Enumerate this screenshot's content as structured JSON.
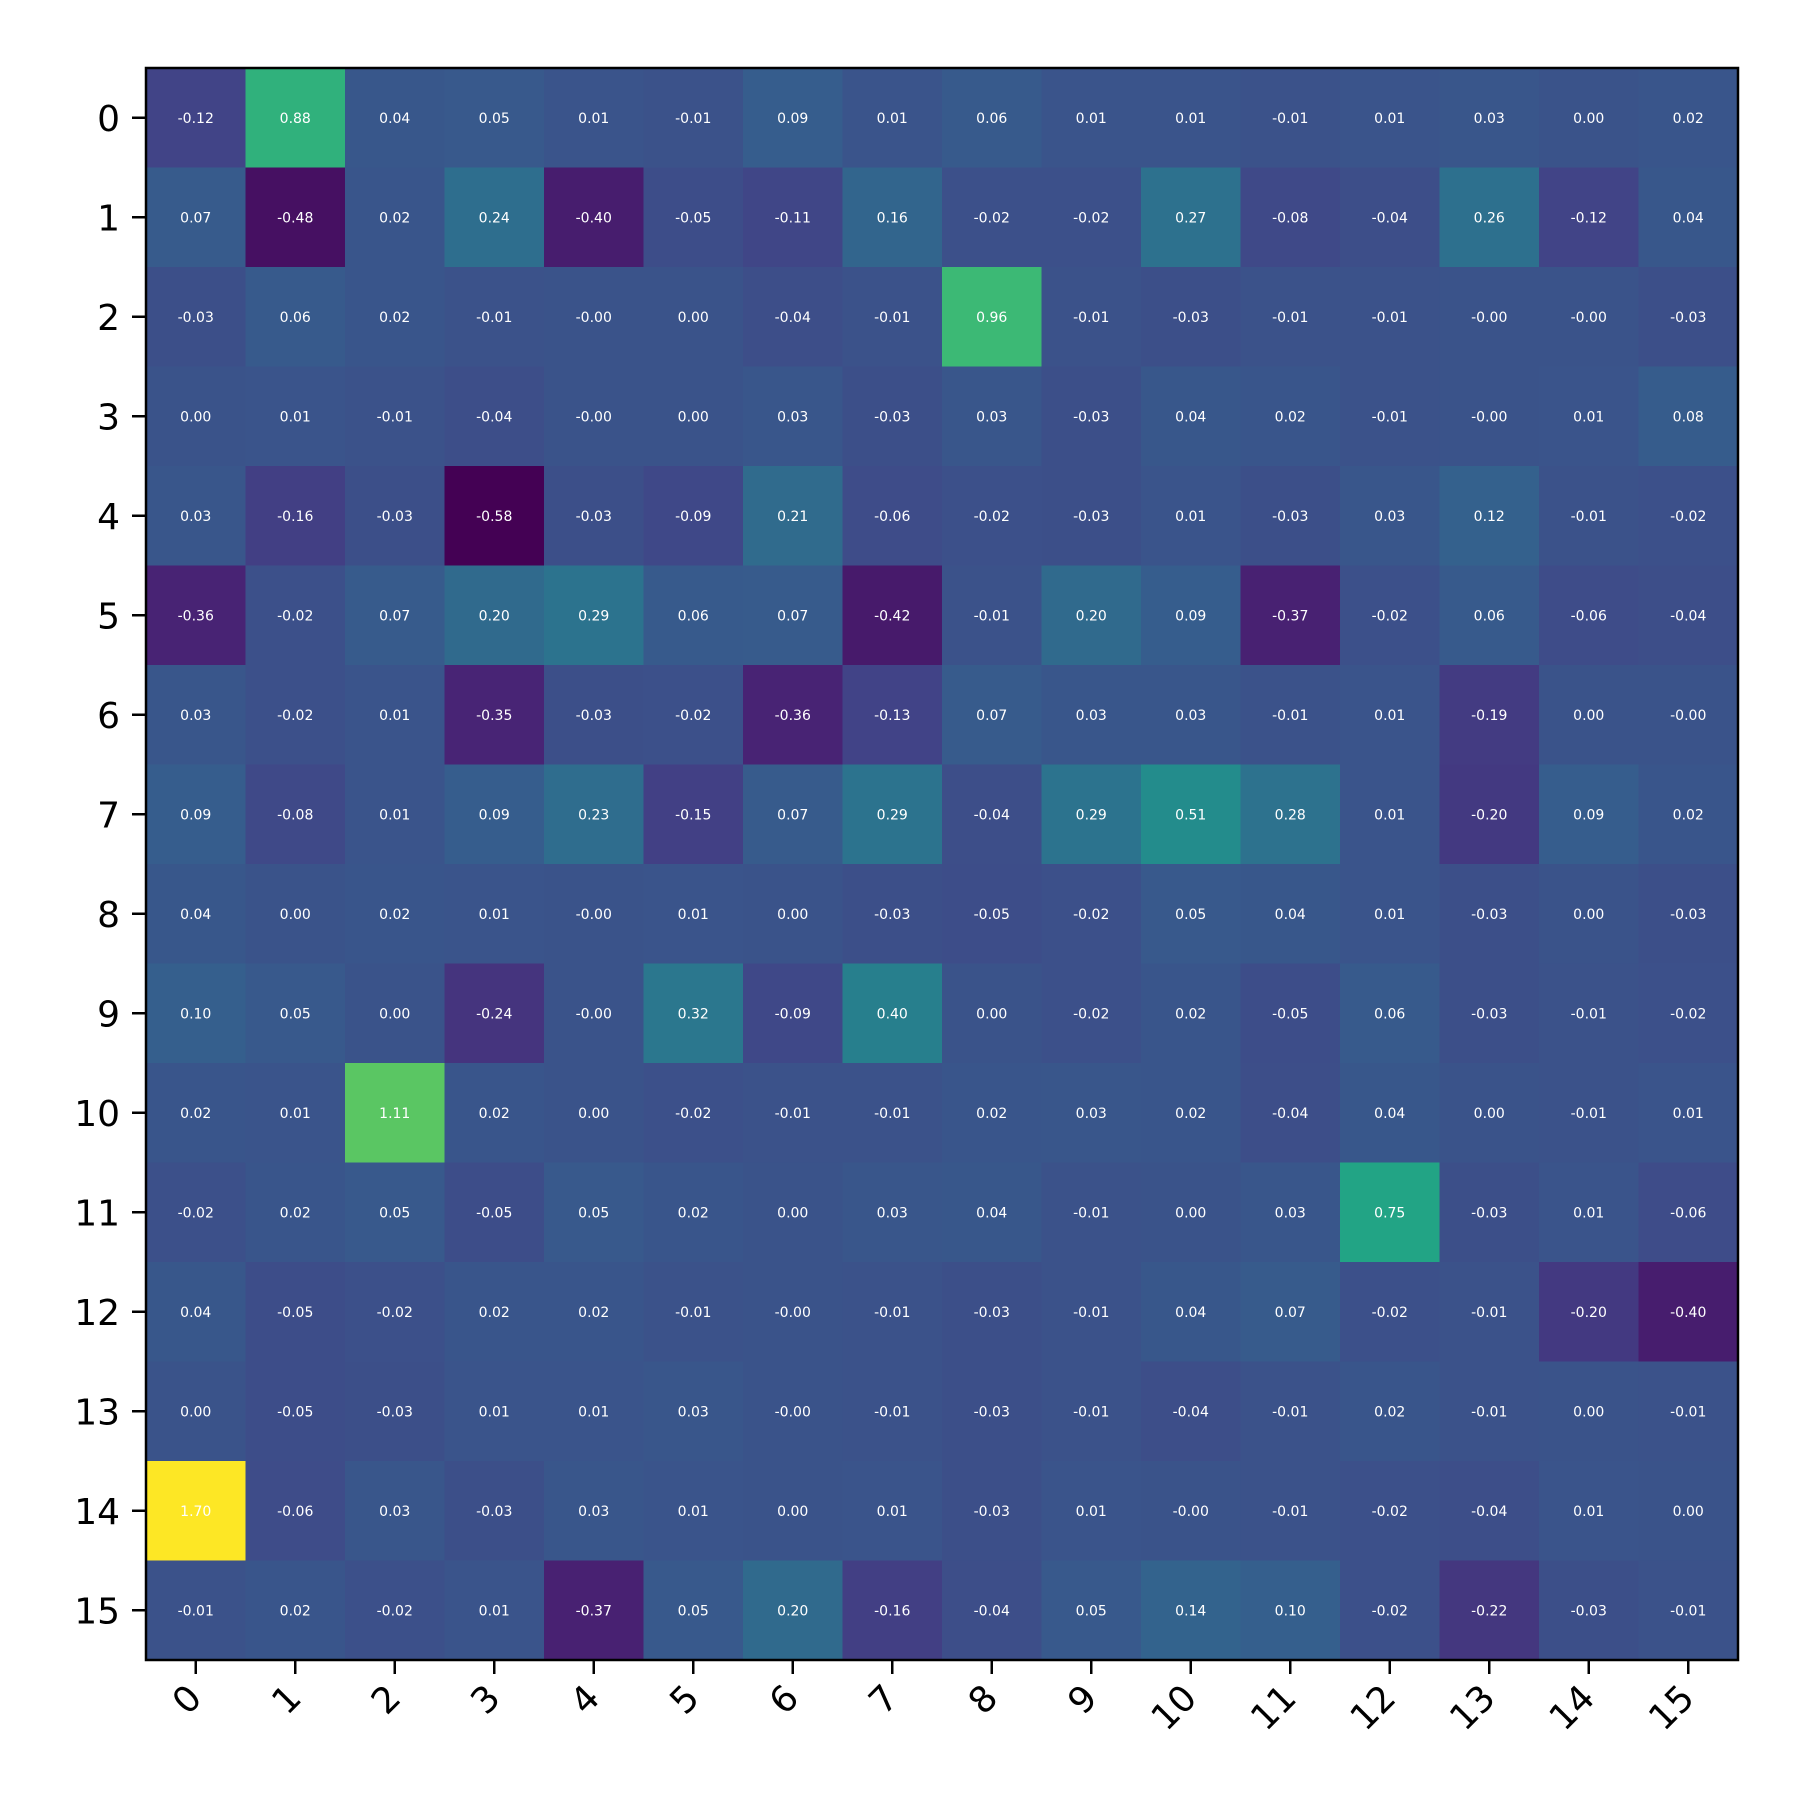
{
  "chart_data": {
    "type": "heatmap",
    "colormap": "viridis",
    "value_range": [
      -0.58,
      1.7
    ],
    "x_categories": [
      "0",
      "1",
      "2",
      "3",
      "4",
      "5",
      "6",
      "7",
      "8",
      "9",
      "10",
      "11",
      "12",
      "13",
      "14",
      "15"
    ],
    "y_categories": [
      "0",
      "1",
      "2",
      "3",
      "4",
      "5",
      "6",
      "7",
      "8",
      "9",
      "10",
      "11",
      "12",
      "13",
      "14",
      "15"
    ],
    "x_tick_rotation": 45,
    "values": [
      [
        "-0.12",
        "0.88",
        "0.04",
        "0.05",
        "0.01",
        "-0.01",
        "0.09",
        "0.01",
        "0.06",
        "0.01",
        "0.01",
        "-0.01",
        "0.01",
        "0.03",
        "0.00",
        "0.02"
      ],
      [
        "0.07",
        "-0.48",
        "0.02",
        "0.24",
        "-0.40",
        "-0.05",
        "-0.11",
        "0.16",
        "-0.02",
        "-0.02",
        "0.27",
        "-0.08",
        "-0.04",
        "0.26",
        "-0.12",
        "0.04"
      ],
      [
        "-0.03",
        "0.06",
        "0.02",
        "-0.01",
        "-0.00",
        "0.00",
        "-0.04",
        "-0.01",
        "0.96",
        "-0.01",
        "-0.03",
        "-0.01",
        "-0.01",
        "-0.00",
        "-0.00",
        "-0.03"
      ],
      [
        "0.00",
        "0.01",
        "-0.01",
        "-0.04",
        "-0.00",
        "0.00",
        "0.03",
        "-0.03",
        "0.03",
        "-0.03",
        "0.04",
        "0.02",
        "-0.01",
        "-0.00",
        "0.01",
        "0.08"
      ],
      [
        "0.03",
        "-0.16",
        "-0.03",
        "-0.58",
        "-0.03",
        "-0.09",
        "0.21",
        "-0.06",
        "-0.02",
        "-0.03",
        "0.01",
        "-0.03",
        "0.03",
        "0.12",
        "-0.01",
        "-0.02"
      ],
      [
        "-0.36",
        "-0.02",
        "0.07",
        "0.20",
        "0.29",
        "0.06",
        "0.07",
        "-0.42",
        "-0.01",
        "0.20",
        "0.09",
        "-0.37",
        "-0.02",
        "0.06",
        "-0.06",
        "-0.04"
      ],
      [
        "0.03",
        "-0.02",
        "0.01",
        "-0.35",
        "-0.03",
        "-0.02",
        "-0.36",
        "-0.13",
        "0.07",
        "0.03",
        "0.03",
        "-0.01",
        "0.01",
        "-0.19",
        "0.00",
        "-0.00"
      ],
      [
        "0.09",
        "-0.08",
        "0.01",
        "0.09",
        "0.23",
        "-0.15",
        "0.07",
        "0.29",
        "-0.04",
        "0.29",
        "0.51",
        "0.28",
        "0.01",
        "-0.20",
        "0.09",
        "0.02"
      ],
      [
        "0.04",
        "0.00",
        "0.02",
        "0.01",
        "-0.00",
        "0.01",
        "0.00",
        "-0.03",
        "-0.05",
        "-0.02",
        "0.05",
        "0.04",
        "0.01",
        "-0.03",
        "0.00",
        "-0.03"
      ],
      [
        "0.10",
        "0.05",
        "0.00",
        "-0.24",
        "-0.00",
        "0.32",
        "-0.09",
        "0.40",
        "0.00",
        "-0.02",
        "0.02",
        "-0.05",
        "0.06",
        "-0.03",
        "-0.01",
        "-0.02"
      ],
      [
        "0.02",
        "0.01",
        "1.11",
        "0.02",
        "0.00",
        "-0.02",
        "-0.01",
        "-0.01",
        "0.02",
        "0.03",
        "0.02",
        "-0.04",
        "0.04",
        "0.00",
        "-0.01",
        "0.01"
      ],
      [
        "-0.02",
        "0.02",
        "0.05",
        "-0.05",
        "0.05",
        "0.02",
        "0.00",
        "0.03",
        "0.04",
        "-0.01",
        "0.00",
        "0.03",
        "0.75",
        "-0.03",
        "0.01",
        "-0.06"
      ],
      [
        "0.04",
        "-0.05",
        "-0.02",
        "0.02",
        "0.02",
        "-0.01",
        "-0.00",
        "-0.01",
        "-0.03",
        "-0.01",
        "0.04",
        "0.07",
        "-0.02",
        "-0.01",
        "-0.20",
        "-0.40"
      ],
      [
        "0.00",
        "-0.05",
        "-0.03",
        "0.01",
        "0.01",
        "0.03",
        "-0.00",
        "-0.01",
        "-0.03",
        "-0.01",
        "-0.04",
        "-0.01",
        "0.02",
        "-0.01",
        "0.00",
        "-0.01"
      ],
      [
        "1.70",
        "-0.06",
        "0.03",
        "-0.03",
        "0.03",
        "0.01",
        "0.00",
        "0.01",
        "-0.03",
        "0.01",
        "-0.00",
        "-0.01",
        "-0.02",
        "-0.04",
        "0.01",
        "0.00"
      ],
      [
        "-0.01",
        "0.02",
        "-0.02",
        "0.01",
        "-0.37",
        "0.05",
        "0.20",
        "-0.16",
        "-0.04",
        "0.05",
        "0.14",
        "0.10",
        "-0.02",
        "-0.22",
        "-0.03",
        "-0.01"
      ]
    ]
  }
}
